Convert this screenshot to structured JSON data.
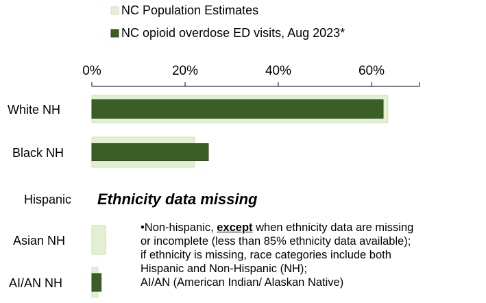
{
  "chart_data": {
    "type": "bar",
    "orientation": "horizontal",
    "title": "",
    "xlabel": "",
    "ylabel": "",
    "xlim": [
      0,
      0.7
    ],
    "x_ticks": [
      {
        "value": 0,
        "label": "0%"
      },
      {
        "value": 0.2,
        "label": "20%"
      },
      {
        "value": 0.4,
        "label": "40%"
      },
      {
        "value": 0.6,
        "label": "60%"
      }
    ],
    "categories": [
      "White NH",
      "Black NH",
      "Hispanic",
      "Asian NH",
      "AI/AN NH"
    ],
    "series": [
      {
        "name": "NC Population Estimates",
        "color": "#e3efd4",
        "edge": "#cfe2b8",
        "values": [
          0.635,
          0.22,
          null,
          0.03,
          0.013
        ]
      },
      {
        "name": "NC opioid overdose ED visits, Aug 2023*",
        "color": "#3b5e26",
        "edge": "#2b4a1c",
        "values": [
          0.625,
          0.25,
          null,
          0.0,
          0.02
        ]
      }
    ],
    "grid": false,
    "legend_position": "top"
  },
  "annotation": "Ethnicity data missing",
  "footnote": {
    "line1_prefix": "•Non-hispanic, ",
    "line1_emph": "except",
    "line1_suffix": " when ethnicity data are missing",
    "line2": "or incomplete (less than 85% ethnicity data available);",
    "line3": "if ethnicity is missing, race categories include both",
    "line4": "Hispanic and Non-Hispanic (NH);",
    "line5": "AI/AN (American Indian/ Alaskan Native)"
  }
}
